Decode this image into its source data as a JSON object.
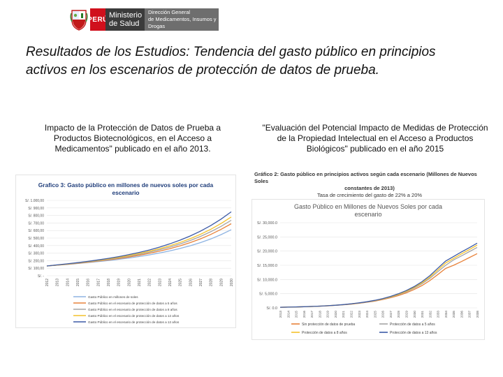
{
  "logo": {
    "country": "PERÚ",
    "ministry_line1": "Ministerio",
    "ministry_line2": "de Salud",
    "direction_line1": "Dirección General",
    "direction_line2": "de Medicamentos, Insumos y Drogas"
  },
  "title": "Resultados de los Estudios: Tendencia del gasto público en principios activos en los escenarios de protección de datos de prueba.",
  "left": {
    "caption": "Impacto de la Protección de Datos de Prueba a Productos Biotecnológicos, en el Acceso a Medicamentos\" publicado en el año 2013."
  },
  "right": {
    "caption": "\"Evaluación del Potencial Impacto de Medidas de Protección de la Propiedad Intelectual en el Acceso a Productos Biológicos\" publicado en el año 2015",
    "header_line1": "Gráfico 2: Gasto público en principios activos según cada escenario (Millones de Nuevos Soles",
    "header_line2": "constantes de 2013)",
    "header_line3": "Tasa de crecimiento del gasto de 22% a 20%"
  },
  "chart_data": [
    {
      "type": "line",
      "title": "Grafico 3: Gasto público en millones de nuevos soles por cada escenario",
      "title_line1": "Grafico 3: Gasto público en millones de nuevos soles por cada",
      "title_line2": "escenario",
      "y_tick_labels": [
        "S/. 1.000,00",
        "S/. 900,00",
        "S/. 800,00",
        "S/. 700,00",
        "S/. 600,00",
        "S/. 500,00",
        "S/. 400,00",
        "S/. 300,00",
        "S/. 200,00",
        "S/. 100,00",
        "S/. -"
      ],
      "ylim": [
        0,
        1000
      ],
      "categories": [
        "2012",
        "2013",
        "2014",
        "2015",
        "2016",
        "2017",
        "2018",
        "2019",
        "2020",
        "2021",
        "2022",
        "2023",
        "2024",
        "2025",
        "2026",
        "2027",
        "2028",
        "2029",
        "2030"
      ],
      "series": [
        {
          "name": "Gasto Público en millones de soles",
          "color": "#8db3e2",
          "values": [
            130,
            140,
            150,
            162,
            175,
            188,
            202,
            218,
            235,
            255,
            277,
            302,
            330,
            362,
            398,
            440,
            488,
            545,
            610
          ]
        },
        {
          "name": "Gasto Público en el escenario de protección de datos a 5 años",
          "color": "#e8823a",
          "values": [
            130,
            141,
            152,
            165,
            179,
            194,
            210,
            228,
            248,
            271,
            297,
            326,
            359,
            397,
            440,
            490,
            548,
            615,
            690
          ]
        },
        {
          "name": "Gasto Público en el escenario de protección de datos a 8 años",
          "color": "#a5a5a5",
          "values": [
            130,
            142,
            154,
            168,
            183,
            199,
            217,
            237,
            259,
            284,
            312,
            344,
            380,
            421,
            468,
            522,
            584,
            655,
            736
          ]
        },
        {
          "name": "Gasto Público en el escenario de protección de datos a 12 años",
          "color": "#f4c22b",
          "values": [
            130,
            143,
            156,
            171,
            187,
            204,
            223,
            244,
            268,
            295,
            325,
            359,
            398,
            442,
            492,
            550,
            617,
            693,
            780
          ]
        },
        {
          "name": "Gasto Público en el escenario de protección de datos a 12 años",
          "color": "#3c5aa6",
          "values": [
            130,
            144,
            158,
            174,
            191,
            210,
            231,
            254,
            280,
            309,
            342,
            380,
            423,
            472,
            528,
            592,
            666,
            751,
            848
          ]
        }
      ]
    },
    {
      "type": "line",
      "title": "Gasto Público en Millones de Nuevos Soles por cada escenario",
      "title_line1": "Gasto Público en Millones de Nuevos Soles por cada",
      "title_line2": "escenario",
      "y_tick_labels": [
        "S/. 30,000.0",
        "S/. 25,000.0",
        "S/. 20,000.0",
        "S/. 15,000.0",
        "S/. 10,000.0",
        "S/. 5,000.0",
        "S/. 0.0"
      ],
      "ylim": [
        0,
        30000
      ],
      "categories": [
        "2013",
        "2014",
        "2015",
        "2016",
        "2017",
        "2018",
        "2019",
        "2020",
        "2021",
        "2022",
        "2023",
        "2024",
        "2025",
        "2026",
        "2027",
        "2028",
        "2029",
        "2030",
        "2031",
        "2032",
        "2033",
        "2034",
        "2035",
        "2036",
        "2037",
        "2038"
      ],
      "series": [
        {
          "name": "Sin protección de datos de prueba",
          "color": "#e8823a",
          "values": [
            220,
            268,
            327,
            399,
            487,
            594,
            724,
            884,
            1078,
            1315,
            1605,
            1958,
            2388,
            2914,
            3555,
            4337,
            5291,
            6455,
            7875,
            9607,
            11721,
            13885,
            15000,
            16300,
            17700,
            19100
          ]
        },
        {
          "name": "Protección de datos a 5 años",
          "color": "#a5a5a5",
          "values": [
            220,
            270,
            331,
            405,
            496,
            607,
            743,
            910,
            1115,
            1366,
            1673,
            2049,
            2510,
            3075,
            3767,
            4614,
            5652,
            6924,
            8482,
            10390,
            12728,
            15000,
            16900,
            18300,
            19800,
            21300
          ]
        },
        {
          "name": "Protección de datos a 8 años",
          "color": "#f4c22b",
          "values": [
            220,
            271,
            333,
            409,
            502,
            616,
            756,
            928,
            1139,
            1398,
            1716,
            2106,
            2585,
            3173,
            3894,
            4780,
            5867,
            7201,
            8839,
            10849,
            13316,
            15800,
            17400,
            19000,
            20500,
            22100
          ]
        },
        {
          "name": "Protección de datos a 13 años",
          "color": "#3c5aa6",
          "values": [
            220,
            272,
            335,
            413,
            508,
            625,
            769,
            946,
            1164,
            1431,
            1760,
            2165,
            2663,
            3275,
            4028,
            4955,
            6094,
            7496,
            9220,
            11341,
            13949,
            16500,
            18100,
            19700,
            21200,
            22800
          ]
        }
      ]
    }
  ]
}
